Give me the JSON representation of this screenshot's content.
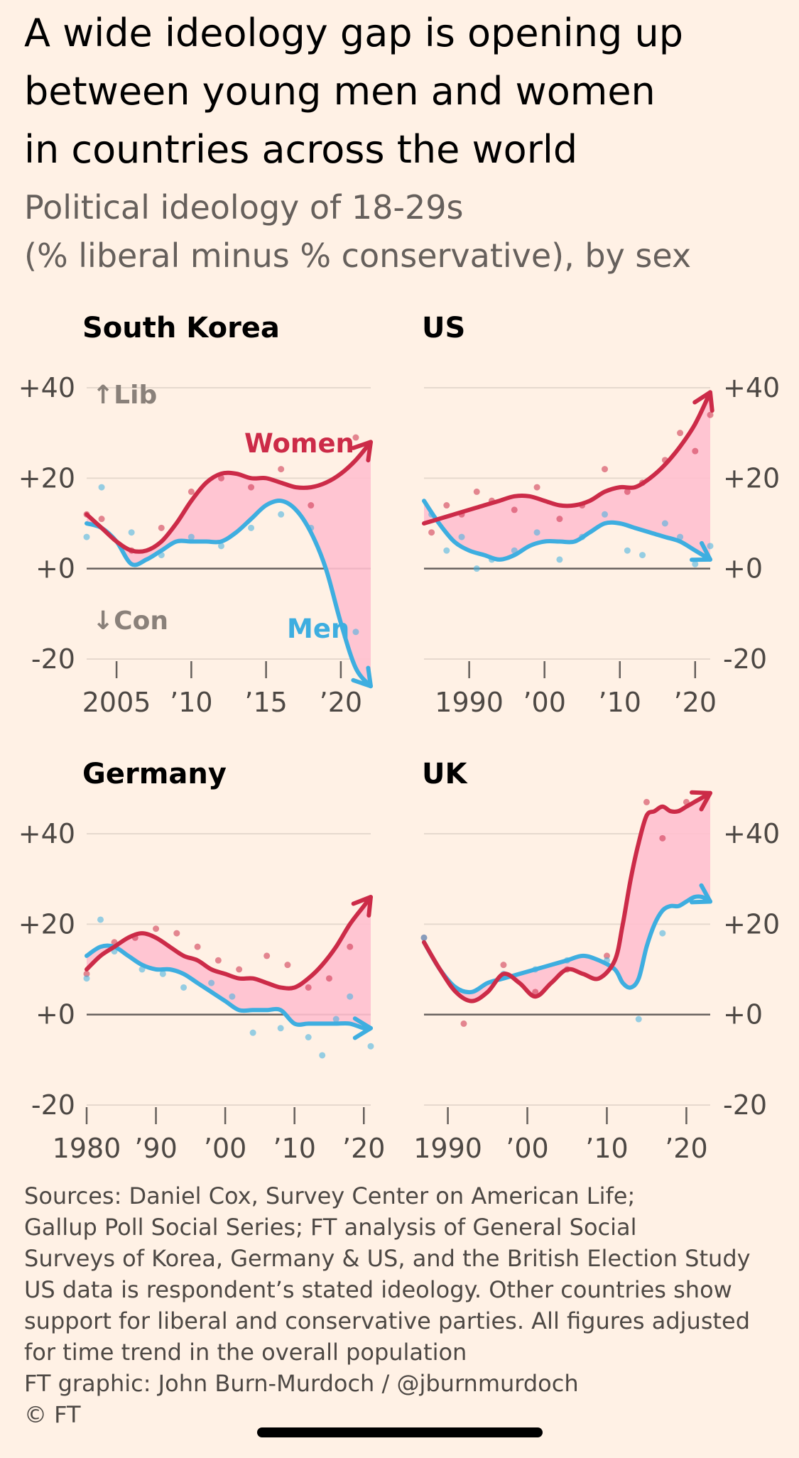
{
  "header": {
    "title_lines": [
      "A wide ideology gap is opening up",
      "between young men and women",
      "in countries across the world"
    ],
    "subtitle_lines": [
      "Political ideology of 18-29s",
      "(% liberal minus % conservative), by sex"
    ]
  },
  "colors": {
    "background": "#fff1e5",
    "women": "#cc2b48",
    "men": "#3eaee0",
    "gap_fill": "#ffc0cf",
    "gridline": "#e6d9ce",
    "zero_line": "#66605c",
    "tick_text": "#4d4844"
  },
  "chart_data": [
    {
      "type": "line",
      "title": "South Korea",
      "y_ticks": [
        "+40",
        "+20",
        "+0",
        "-20"
      ],
      "y_values": [
        40,
        20,
        0,
        -20
      ],
      "ylim": [
        -20,
        40
      ],
      "xlim": [
        2003,
        2022
      ],
      "x_ticks": [
        2005,
        2010,
        2015,
        2020
      ],
      "x_tick_labels": [
        "2005",
        "’10",
        "’15",
        "’20"
      ],
      "y_axis_side": "left",
      "lib_label": "↑Lib",
      "con_label": "↓Con",
      "series": [
        {
          "name": "Women",
          "x": [
            2003,
            2004,
            2005,
            2006,
            2007,
            2008,
            2009,
            2010,
            2011,
            2012,
            2013,
            2014,
            2015,
            2016,
            2017,
            2018,
            2019,
            2020,
            2021,
            2022
          ],
          "y": [
            12,
            9,
            6,
            4,
            4,
            6,
            10,
            15,
            19,
            21,
            21,
            20,
            20,
            19,
            18,
            18,
            19,
            21,
            24,
            28
          ]
        },
        {
          "name": "Men",
          "x": [
            2003,
            2004,
            2005,
            2006,
            2007,
            2008,
            2009,
            2010,
            2011,
            2012,
            2013,
            2014,
            2015,
            2016,
            2017,
            2018,
            2019,
            2020,
            2021,
            2022
          ],
          "y": [
            10,
            9,
            6,
            1,
            2,
            4,
            6,
            6,
            6,
            6,
            8,
            11,
            14,
            15,
            13,
            8,
            0,
            -12,
            -22,
            -26
          ]
        }
      ],
      "scatter": [
        {
          "name": "Women",
          "x": [
            2003,
            2004,
            2006,
            2008,
            2010,
            2012,
            2014,
            2016,
            2018,
            2021
          ],
          "y": [
            12,
            11,
            4,
            9,
            17,
            20,
            18,
            22,
            14,
            29
          ]
        },
        {
          "name": "Men",
          "x": [
            2003,
            2004,
            2006,
            2008,
            2010,
            2012,
            2014,
            2016,
            2018,
            2021
          ],
          "y": [
            7,
            18,
            8,
            3,
            7,
            5,
            9,
            12,
            9,
            -14
          ]
        }
      ],
      "annotations": [
        {
          "text": "Women",
          "series": "Women"
        },
        {
          "text": "Men",
          "series": "Men"
        }
      ]
    },
    {
      "type": "line",
      "title": "US",
      "y_ticks": [
        "+40",
        "+20",
        "+0",
        "-20"
      ],
      "y_values": [
        40,
        20,
        0,
        -20
      ],
      "ylim": [
        -20,
        40
      ],
      "xlim": [
        1984,
        2022
      ],
      "x_ticks": [
        1990,
        2000,
        2010,
        2020
      ],
      "x_tick_labels": [
        "1990",
        "’00",
        "’10",
        "’20"
      ],
      "y_axis_side": "right",
      "series": [
        {
          "name": "Women",
          "x": [
            1984,
            1986,
            1988,
            1990,
            1992,
            1994,
            1996,
            1998,
            2000,
            2002,
            2004,
            2006,
            2008,
            2010,
            2012,
            2014,
            2016,
            2018,
            2020,
            2022
          ],
          "y": [
            10,
            11,
            12,
            13,
            14,
            15,
            16,
            16,
            15,
            14,
            14,
            15,
            17,
            18,
            18,
            20,
            23,
            27,
            32,
            39
          ]
        },
        {
          "name": "Men",
          "x": [
            1984,
            1986,
            1988,
            1990,
            1992,
            1994,
            1996,
            1998,
            2000,
            2002,
            2004,
            2006,
            2008,
            2010,
            2012,
            2014,
            2016,
            2018,
            2020,
            2022
          ],
          "y": [
            15,
            10,
            6,
            4,
            3,
            2,
            3,
            5,
            6,
            6,
            6,
            8,
            10,
            10,
            9,
            8,
            7,
            6,
            4,
            2
          ]
        }
      ],
      "scatter": [
        {
          "name": "Women",
          "x": [
            1985,
            1987,
            1989,
            1991,
            1993,
            1996,
            1999,
            2002,
            2005,
            2008,
            2011,
            2013,
            2016,
            2018,
            2020,
            2022
          ],
          "y": [
            8,
            14,
            12,
            17,
            15,
            13,
            18,
            11,
            14,
            22,
            17,
            19,
            24,
            30,
            26,
            34
          ]
        },
        {
          "name": "Men",
          "x": [
            1985,
            1987,
            1989,
            1991,
            1993,
            1996,
            1999,
            2002,
            2005,
            2008,
            2011,
            2013,
            2016,
            2018,
            2020,
            2022
          ],
          "y": [
            12,
            4,
            7,
            0,
            2,
            4,
            8,
            2,
            7,
            12,
            4,
            3,
            10,
            7,
            1,
            5
          ]
        }
      ]
    },
    {
      "type": "line",
      "title": "Germany",
      "y_ticks": [
        "+40",
        "+20",
        "+0",
        "-20"
      ],
      "y_values": [
        40,
        20,
        0,
        -20
      ],
      "ylim": [
        -20,
        40
      ],
      "xlim": [
        1980,
        2021
      ],
      "x_ticks": [
        1980,
        1990,
        2000,
        2010,
        2020
      ],
      "x_tick_labels": [
        "1980",
        "’90",
        "’00",
        "’10",
        "’20"
      ],
      "y_axis_side": "left",
      "series": [
        {
          "name": "Women",
          "x": [
            1980,
            1982,
            1984,
            1986,
            1988,
            1990,
            1992,
            1994,
            1996,
            1998,
            2000,
            2002,
            2004,
            2006,
            2008,
            2010,
            2012,
            2014,
            2016,
            2018,
            2020,
            2021
          ],
          "y": [
            10,
            13,
            15,
            17,
            18,
            17,
            15,
            13,
            12,
            10,
            9,
            8,
            8,
            7,
            6,
            6,
            8,
            11,
            15,
            20,
            24,
            26
          ]
        },
        {
          "name": "Men",
          "x": [
            1980,
            1982,
            1984,
            1986,
            1988,
            1990,
            1992,
            1994,
            1996,
            1998,
            2000,
            2002,
            2004,
            2006,
            2008,
            2010,
            2012,
            2014,
            2016,
            2018,
            2020,
            2021
          ],
          "y": [
            13,
            15,
            15,
            13,
            11,
            10,
            10,
            9,
            7,
            5,
            3,
            1,
            1,
            1,
            1,
            -2,
            -2,
            -2,
            -2,
            -2,
            -3,
            -3
          ]
        }
      ],
      "scatter": [
        {
          "name": "Women",
          "x": [
            1980,
            1984,
            1987,
            1990,
            1993,
            1996,
            1999,
            2002,
            2006,
            2009,
            2012,
            2015,
            2018
          ],
          "y": [
            9,
            16,
            17,
            19,
            18,
            15,
            12,
            10,
            13,
            11,
            6,
            8,
            15
          ]
        },
        {
          "name": "Men",
          "x": [
            1980,
            1982,
            1984,
            1988,
            1991,
            1994,
            1998,
            2001,
            2004,
            2008,
            2012,
            2014,
            2016,
            2018,
            2021
          ],
          "y": [
            8,
            21,
            14,
            10,
            9,
            6,
            7,
            4,
            -4,
            -3,
            -5,
            -9,
            -1,
            4,
            -7
          ]
        }
      ]
    },
    {
      "type": "line",
      "title": "UK",
      "y_ticks": [
        "+40",
        "+20",
        "+0",
        "-20"
      ],
      "y_values": [
        40,
        20,
        0,
        -20
      ],
      "ylim": [
        -20,
        40
      ],
      "xlim": [
        1987,
        2023
      ],
      "x_ticks": [
        1990,
        2000,
        2010,
        2020
      ],
      "x_tick_labels": [
        "1990",
        "’00",
        "’10",
        "’20"
      ],
      "y_axis_side": "right",
      "series": [
        {
          "name": "Women",
          "x": [
            1987,
            1989,
            1991,
            1993,
            1995,
            1997,
            1999,
            2001,
            2003,
            2005,
            2007,
            2009,
            2011,
            2012,
            2013,
            2014,
            2015,
            2016,
            2017,
            2018,
            2019,
            2020,
            2021,
            2022,
            2023
          ],
          "y": [
            16,
            10,
            5,
            3,
            5,
            9,
            7,
            4,
            7,
            10,
            9,
            8,
            12,
            20,
            30,
            38,
            44,
            45,
            46,
            45,
            45,
            46,
            47,
            48,
            49
          ]
        },
        {
          "name": "Men",
          "x": [
            1987,
            1989,
            1991,
            1993,
            1995,
            1997,
            1999,
            2001,
            2003,
            2005,
            2007,
            2009,
            2011,
            2012,
            2013,
            2014,
            2015,
            2016,
            2017,
            2018,
            2019,
            2020,
            2021,
            2022,
            2023
          ],
          "y": [
            16,
            10,
            6,
            5,
            7,
            8,
            9,
            10,
            11,
            12,
            13,
            12,
            10,
            7,
            6,
            8,
            15,
            20,
            23,
            24,
            24,
            25,
            26,
            26,
            25
          ]
        }
      ],
      "scatter": [
        {
          "name": "Women",
          "x": [
            1987,
            1992,
            1997,
            2001,
            2005,
            2010,
            2015,
            2017,
            2020
          ],
          "y": [
            17,
            -2,
            11,
            5,
            10,
            13,
            47,
            39,
            47
          ]
        },
        {
          "name": "Men",
          "x": [
            1987,
            1997,
            2001,
            2005,
            2010,
            2014,
            2017
          ],
          "y": [
            17,
            9,
            10,
            12,
            12,
            -1,
            18
          ]
        }
      ]
    }
  ],
  "footer": {
    "lines": [
      "Sources: Daniel Cox, Survey Center on American Life;",
      "Gallup Poll Social Series; FT analysis of General Social",
      "Surveys of Korea, Germany & US, and the British Election Study",
      "US data is respondent’s stated ideology. Other countries show",
      "support for liberal and conservative parties. All figures adjusted",
      "for time trend in the overall population",
      "FT graphic: John Burn-Murdoch / @jburnmurdoch",
      "© FT"
    ]
  }
}
